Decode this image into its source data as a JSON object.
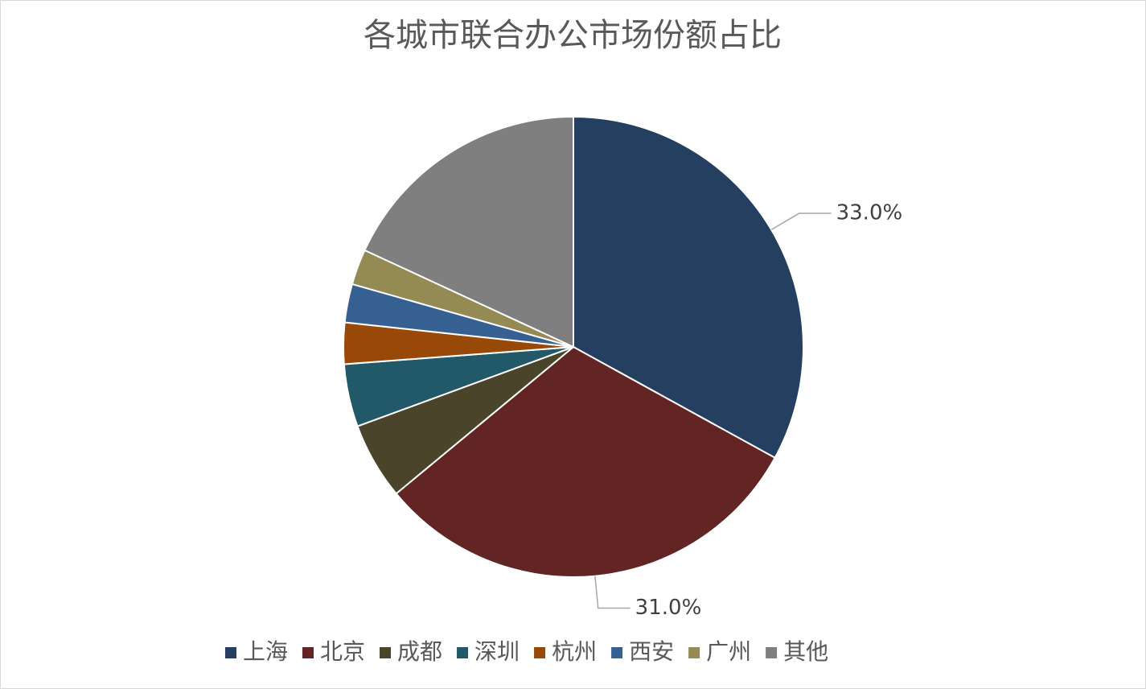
{
  "chart_data": {
    "type": "pie",
    "title": "各城市联合办公市场份额占比",
    "categories": [
      "上海",
      "北京",
      "成都",
      "深圳",
      "杭州",
      "西安",
      "广州",
      "其他"
    ],
    "values": [
      33,
      31,
      5.4,
      4.4,
      2.9,
      2.7,
      2.5,
      18.1
    ],
    "value_labels": [
      "33.0%",
      "31.0%",
      null,
      null,
      null,
      null,
      null,
      null
    ],
    "colors": [
      "#243f60",
      "#632523",
      "#4a452a",
      "#215968",
      "#984807",
      "#376092",
      "#948a54",
      "#7f7f7f"
    ],
    "legend": "bottom"
  }
}
